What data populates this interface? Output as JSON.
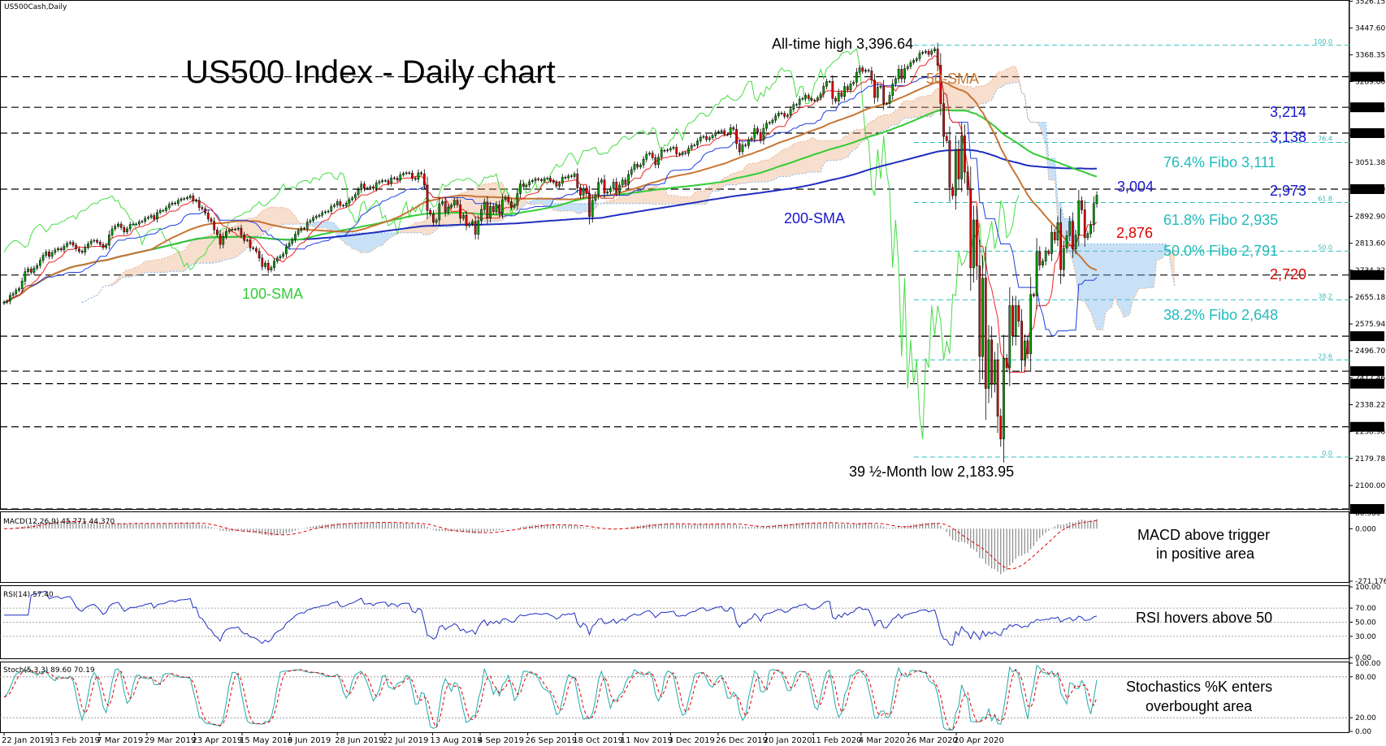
{
  "chart_data": {
    "type": "candlestick",
    "symbol_label": "US500Cash,Daily",
    "title": "US500 Index - Daily chart",
    "colors": {
      "price": "#000000",
      "bull": "#00a000",
      "bear": "#e00000",
      "sma50": "#c87533",
      "sma100": "#33cc33",
      "sma200": "#1f2fbf",
      "kijun": "#1f3fdf",
      "tenkan": "#ee2222",
      "chikou": "#44dd44",
      "fibo": "#33bbbb",
      "cloud_bull": "#e8a070",
      "cloud_bear": "#60a8e8",
      "label_blue": "#1515d0",
      "label_red": "#e00000",
      "label_cyan": "#22bbbb",
      "label_orange": "#c87533",
      "label_green": "#33cc33"
    },
    "x_ticks": [
      "22 Jan 2019",
      "13 Feb 2019",
      "7 Mar 2019",
      "29 Mar 2019",
      "23 Apr 2019",
      "15 May 2019",
      "6 Jun 2019",
      "28 Jun 2019",
      "22 Jul 2019",
      "13 Aug 2019",
      "4 Sep 2019",
      "26 Sep 2019",
      "18 Oct 2019",
      "11 Nov 2019",
      "3 Dec 2019",
      "26 Dec 2019",
      "20 Jan 2020",
      "11 Feb 2020",
      "4 Mar 2020",
      "26 Mar 2020",
      "20 Apr 2020"
    ],
    "price_axis": {
      "ticks": [
        "3526.15",
        "3447.60",
        "3368.35",
        "3289.80",
        "3210.55",
        "3131.25",
        "3051.38",
        "2972.60",
        "2892.90",
        "2813.60",
        "2734.32",
        "2655.18",
        "2575.94",
        "2496.70",
        "2417.46",
        "2338.22",
        "2258.98",
        "2179.78",
        "2100.00"
      ],
      "levels": [
        "3304.00",
        "3214.00",
        "3138.00",
        "2973.00",
        "2720.00",
        "2540.00",
        "2437.00",
        "2400.00",
        "2273.00",
        "2031.00"
      ]
    },
    "close": [
      2640,
      2643,
      2660,
      2665,
      2675,
      2680,
      2702,
      2730,
      2738,
      2728,
      2740,
      2748,
      2763,
      2778,
      2788,
      2775,
      2786,
      2794,
      2798,
      2794,
      2805,
      2813,
      2816,
      2808,
      2797,
      2790,
      2787,
      2802,
      2812,
      2820,
      2822,
      2817,
      2810,
      2801,
      2808,
      2838,
      2856,
      2864,
      2870,
      2860,
      2847,
      2856,
      2869,
      2870,
      2870,
      2877,
      2878,
      2887,
      2890,
      2895,
      2885,
      2904,
      2910,
      2910,
      2918,
      2928,
      2932,
      2930,
      2940,
      2944,
      2945,
      2948,
      2953,
      2938,
      2940,
      2919,
      2915,
      2903,
      2885,
      2878,
      2853,
      2840,
      2810,
      2834,
      2848,
      2853,
      2855,
      2855,
      2858,
      2838,
      2822,
      2823,
      2800,
      2798,
      2790,
      2770,
      2745,
      2755,
      2735,
      2742,
      2761,
      2770,
      2775,
      2782,
      2803,
      2813,
      2824,
      2840,
      2851,
      2858,
      2857,
      2876,
      2880,
      2889,
      2893,
      2896,
      2904,
      2906,
      2908,
      2922,
      2926,
      2936,
      2925,
      2924,
      2932,
      2942,
      2947,
      2957,
      2971,
      2988,
      2975,
      2976,
      2980,
      2975,
      2991,
      2995,
      2998,
      2998,
      2990,
      3006,
      3005,
      3000,
      3015,
      3019,
      3021,
      3020,
      3005,
      3002,
      3021,
      3018,
      2985,
      2910,
      2900,
      2875,
      2882,
      2930,
      2937,
      2905,
      2920,
      2926,
      2940,
      2927,
      2887,
      2896,
      2865,
      2871,
      2878,
      2840,
      2880,
      2913,
      2935,
      2888,
      2922,
      2906,
      2927,
      2902,
      2942,
      2949,
      2936,
      2920,
      2925,
      2960,
      2988,
      2981,
      2985,
      2995,
      2998,
      3003,
      3001,
      2998,
      3004,
      3005,
      2998,
      2993,
      2982,
      2990,
      3008,
      3006,
      3012,
      3010,
      3018,
      2977,
      2955,
      2975,
      2960,
      2892,
      2940,
      2957,
      2993,
      3000,
      2961,
      2965,
      2975,
      2994,
      2964,
      2985,
      3000,
      2987,
      3016,
      3031,
      3046,
      3038,
      3044,
      3061,
      3076,
      3079,
      3066,
      3045,
      3067,
      3087,
      3086,
      3088,
      3093,
      3096,
      3077,
      3075,
      3080,
      3078,
      3093,
      3102,
      3103,
      3115,
      3126,
      3128,
      3119,
      3124,
      3131,
      3140,
      3142,
      3145,
      3135,
      3134,
      3154,
      3149,
      3107,
      3083,
      3103,
      3101,
      3118,
      3123,
      3151,
      3140,
      3118,
      3152,
      3167,
      3169,
      3176,
      3189,
      3197,
      3196,
      3187,
      3191,
      3208,
      3222,
      3222,
      3238,
      3240,
      3249,
      3240,
      3235,
      3235,
      3242,
      3253,
      3276,
      3290,
      3290,
      3240,
      3232,
      3257,
      3246,
      3275,
      3265,
      3283,
      3288,
      3317,
      3330,
      3320,
      3323,
      3321,
      3294,
      3243,
      3273,
      3276,
      3225,
      3225,
      3249,
      3283,
      3298,
      3326,
      3298,
      3328,
      3334,
      3346,
      3352,
      3357,
      3373,
      3376,
      3379,
      3370,
      3380,
      3386,
      3338,
      3225,
      3128,
      3116,
      2978,
      2954,
      3090,
      3003,
      3130,
      3023,
      2972,
      2741,
      2882,
      2747,
      2480,
      2711,
      2386,
      2529,
      2398,
      2470,
      2304,
      2237,
      2475,
      2447,
      2630,
      2541,
      2630,
      2584,
      2470,
      2526,
      2488,
      2663,
      2659,
      2789,
      2749,
      2761,
      2790,
      2783,
      2846,
      2823,
      2874,
      2736,
      2799,
      2836,
      2878,
      2797,
      2837,
      2939,
      2912,
      2830,
      2842,
      2868,
      2930,
      2955
    ],
    "annotations": {
      "ath": "All-time high 3,396.64",
      "low": "39 ½-Month low 2,183.95",
      "sma50": "50-SMA",
      "sma100": "100-SMA",
      "sma200": "200-SMA",
      "lvl_3214": "3,214",
      "lvl_3138": "3,138",
      "fibo_764": "76.4% Fibo 3,111",
      "lvl_3004": "3,004",
      "lvl_2973": "2,973",
      "fibo_618": "61.8% Fibo 2,935",
      "lvl_2876": "2,876",
      "fibo_500": "50.0% Fibo 2,791",
      "lvl_2720": "2,720",
      "fibo_382": "38.2% Fibo 2,648",
      "fibo_pct": [
        "100.0",
        "76.4",
        "61.8",
        "50.0",
        "38.2",
        "23.6",
        "0.0"
      ]
    },
    "macd": {
      "label": "MACD(12,26,9) 45.771 44.370",
      "axis": [
        "80.980",
        "0.000",
        "-271.176"
      ],
      "annotation_1": "MACD above trigger",
      "annotation_2": "in positive area"
    },
    "rsi": {
      "label": "RSI(14) 57.40",
      "axis": [
        "100.00",
        "70.00",
        "50.00",
        "30.00",
        "0.00"
      ],
      "annotation": "RSI hovers above 50"
    },
    "stoch": {
      "label": "Stoch(5,3,3) 89.60 70.19",
      "axis": [
        "100.00",
        "80.00",
        "20.00",
        "0.00"
      ],
      "annotation_1": "Stochastics %K enters",
      "annotation_2": "overbought area"
    }
  }
}
